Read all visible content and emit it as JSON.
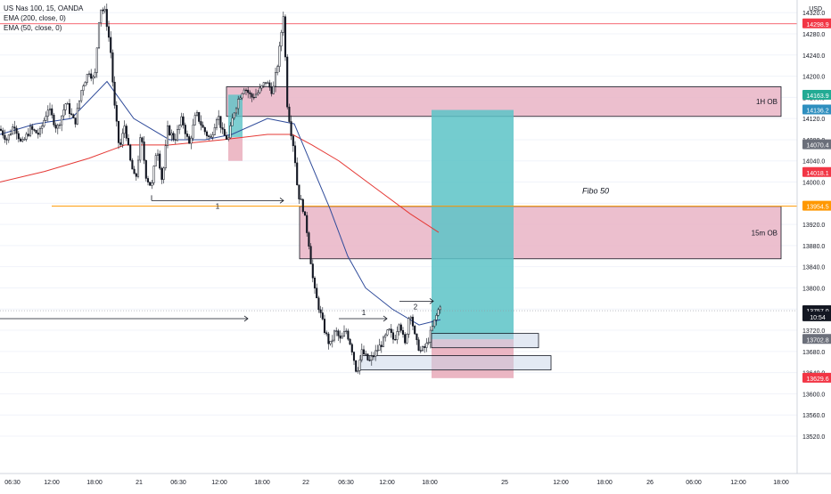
{
  "legend": {
    "symbol": "US Nas 100, 15, OANDA",
    "ema200": "EMA (200, close, 0)",
    "ema50": "EMA (50, close, 0)"
  },
  "currency_label": "USD",
  "colors": {
    "candle": "#131722",
    "ema200": "#e53935",
    "ema50": "#2f4b9a",
    "fibo_line": "#ff9800",
    "ob_fill": "#e9b4c6",
    "target_fill": "#5cc3c7",
    "stop_fill": "#e8a9b8",
    "high_line": "#f23645",
    "crosshair": "#9598a1"
  },
  "chart_data": {
    "type": "candlestick",
    "symbol": "US Nas 100",
    "timeframe": "15",
    "ylim": [
      13490,
      14340
    ],
    "y_ticks": [
      13520,
      13560,
      13600,
      13640,
      13680,
      13720,
      13760,
      13800,
      13840,
      13880,
      13920,
      13960,
      14000,
      14040,
      14080,
      14120,
      14160,
      14200,
      14240,
      14280,
      14320
    ],
    "y_tick_labels": [
      "13520.0",
      "13560.0",
      "13600.0",
      "13640.0",
      "13680.0",
      "13720.0",
      "13760.0",
      "13800.0",
      "13840.0",
      "13880.0",
      "13920.0",
      "13960.0",
      "14000.0",
      "14040.0",
      "14080.0",
      "14120.0",
      "14160.0",
      "14200.0",
      "14240.0",
      "14280.0",
      "14320.0"
    ],
    "x_tick_labels": [
      "06:30",
      "12:00",
      "18:00",
      "21",
      "06:30",
      "12:00",
      "18:00",
      "22",
      "06:30",
      "12:00",
      "18:00",
      "25",
      "12:00",
      "18:00",
      "26",
      "06:00",
      "12:00",
      "18:00"
    ],
    "price_tags": [
      {
        "label": "14298.9",
        "price": 14298.9,
        "color": "#f23645"
      },
      {
        "label": "14163.9",
        "price": 14163.9,
        "color": "#22ab94"
      },
      {
        "label": "14136.2",
        "price": 14136.2,
        "color": "#2f8fbf"
      },
      {
        "label": "14070.4",
        "price": 14070.4,
        "color": "#6b6f7a"
      },
      {
        "label": "14018.1",
        "price": 14018.1,
        "color": "#f23645"
      },
      {
        "label": "13954.5",
        "price": 13954.5,
        "color": "#ff9800"
      },
      {
        "label": "13757.0",
        "price": 13757.0,
        "color": "#131722"
      },
      {
        "label": "10:54",
        "price": 13745.5,
        "color": "#131722"
      },
      {
        "label": "13702.8",
        "price": 13702.8,
        "color": "#6b6f7a"
      },
      {
        "label": "13629.6",
        "price": 13629.6,
        "color": "#f23645"
      }
    ],
    "path_points": [
      [
        0,
        14100
      ],
      [
        8,
        14080
      ],
      [
        16,
        14110
      ],
      [
        24,
        14070
      ],
      [
        34,
        14100
      ],
      [
        44,
        14090
      ],
      [
        54,
        14140
      ],
      [
        64,
        14100
      ],
      [
        74,
        14150
      ],
      [
        84,
        14110
      ],
      [
        92,
        14180
      ],
      [
        100,
        14210
      ],
      [
        106,
        14190
      ],
      [
        112,
        14330
      ],
      [
        118,
        14320
      ],
      [
        124,
        14250
      ],
      [
        128,
        14150
      ],
      [
        134,
        14060
      ],
      [
        140,
        14110
      ],
      [
        146,
        14040
      ],
      [
        152,
        14000
      ],
      [
        158,
        14090
      ],
      [
        164,
        14010
      ],
      [
        170,
        13990
      ],
      [
        176,
        14070
      ],
      [
        182,
        14000
      ],
      [
        188,
        14100
      ],
      [
        196,
        14080
      ],
      [
        204,
        14120
      ],
      [
        212,
        14070
      ],
      [
        220,
        14130
      ],
      [
        228,
        14100
      ],
      [
        236,
        14080
      ],
      [
        244,
        14130
      ],
      [
        250,
        14090
      ],
      [
        256,
        14080
      ],
      [
        262,
        14130
      ],
      [
        268,
        14160
      ],
      [
        274,
        14180
      ],
      [
        282,
        14160
      ],
      [
        290,
        14170
      ],
      [
        298,
        14190
      ],
      [
        306,
        14170
      ],
      [
        312,
        14230
      ],
      [
        318,
        14320
      ],
      [
        322,
        14150
      ],
      [
        326,
        14100
      ],
      [
        330,
        14060
      ],
      [
        334,
        13980
      ],
      [
        340,
        13950
      ],
      [
        346,
        13890
      ],
      [
        352,
        13800
      ],
      [
        358,
        13760
      ],
      [
        364,
        13720
      ],
      [
        370,
        13690
      ],
      [
        376,
        13720
      ],
      [
        382,
        13700
      ],
      [
        388,
        13720
      ],
      [
        394,
        13690
      ],
      [
        400,
        13640
      ],
      [
        406,
        13680
      ],
      [
        414,
        13660
      ],
      [
        422,
        13680
      ],
      [
        430,
        13700
      ],
      [
        436,
        13720
      ],
      [
        442,
        13700
      ],
      [
        448,
        13740
      ],
      [
        454,
        13690
      ],
      [
        460,
        13760
      ],
      [
        466,
        13700
      ],
      [
        472,
        13680
      ],
      [
        478,
        13690
      ],
      [
        484,
        13720
      ],
      [
        490,
        13750
      ],
      [
        494,
        13770
      ]
    ],
    "ema50": [
      [
        0,
        14090
      ],
      [
        40,
        14110
      ],
      [
        80,
        14120
      ],
      [
        120,
        14190
      ],
      [
        150,
        14120
      ],
      [
        190,
        14080
      ],
      [
        230,
        14080
      ],
      [
        260,
        14090
      ],
      [
        300,
        14120
      ],
      [
        330,
        14110
      ],
      [
        350,
        14030
      ],
      [
        370,
        13950
      ],
      [
        390,
        13860
      ],
      [
        410,
        13800
      ],
      [
        440,
        13760
      ],
      [
        470,
        13730
      ],
      [
        494,
        13740
      ]
    ],
    "ema200": [
      [
        0,
        14000
      ],
      [
        50,
        14020
      ],
      [
        100,
        14045
      ],
      [
        140,
        14070
      ],
      [
        190,
        14070
      ],
      [
        250,
        14080
      ],
      [
        300,
        14090
      ],
      [
        328,
        14090
      ],
      [
        350,
        14070
      ],
      [
        380,
        14040
      ],
      [
        420,
        13990
      ],
      [
        460,
        13940
      ],
      [
        492,
        13905
      ]
    ],
    "zones": [
      {
        "name": "1H OB",
        "label": "1H OB",
        "y_top": 14180,
        "y_bottom": 14124
      },
      {
        "name": "15m OB",
        "label": "15m OB",
        "y_top": 13954,
        "y_bottom": 13855
      }
    ],
    "fibo": {
      "label": "Fibo 50",
      "price": 13954.5
    },
    "position": {
      "entry": 13702.8,
      "target": 14136.2,
      "stop": 13629.6
    },
    "current_price": 13757.0,
    "annotations": [
      "1",
      "1",
      "2"
    ]
  }
}
